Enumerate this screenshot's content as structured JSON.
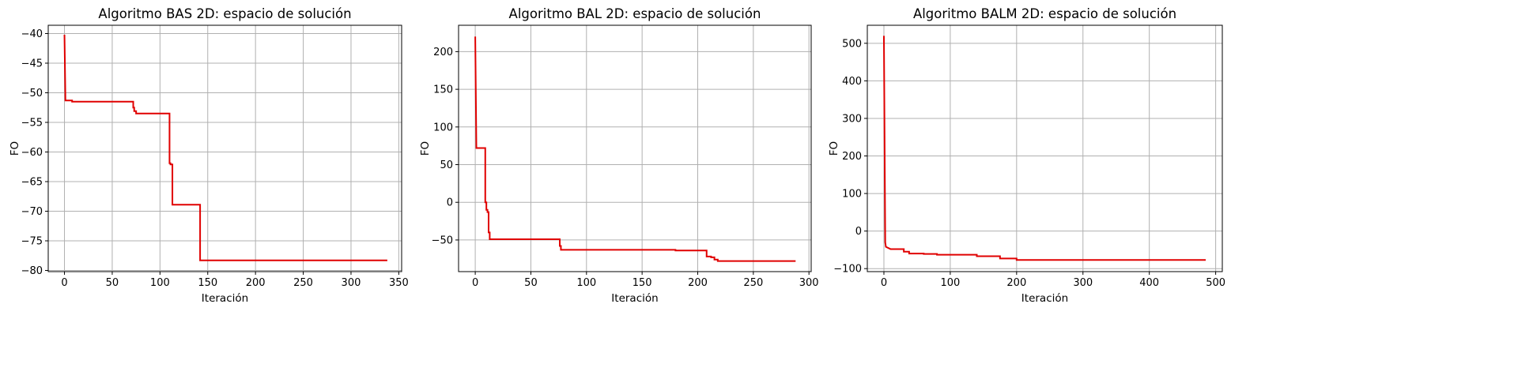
{
  "chart_data": [
    {
      "type": "line",
      "title": "Algoritmo BAS 2D: espacio de solución",
      "xlabel": "Iteración",
      "ylabel": "FO",
      "xlim": [
        -17,
        353
      ],
      "ylim": [
        -80.2,
        -38.6
      ],
      "xticks": [
        0,
        50,
        100,
        150,
        200,
        250,
        300,
        350
      ],
      "yticks": [
        -80,
        -75,
        -70,
        -65,
        -60,
        -55,
        -50,
        -45,
        -40
      ],
      "grid": true,
      "series": [
        {
          "color": "#e00000",
          "x": [
            0,
            1,
            1,
            8,
            8,
            72,
            72,
            73,
            73,
            75,
            75,
            110,
            110,
            111,
            111,
            113,
            113,
            142,
            142,
            338
          ],
          "y": [
            -40.2,
            -51.3,
            -51.3,
            -51.3,
            -51.5,
            -51.5,
            -52.5,
            -52.5,
            -53.1,
            -53.1,
            -53.5,
            -53.5,
            -61.9,
            -61.9,
            -62.1,
            -62.1,
            -68.9,
            -68.9,
            -78.3,
            -78.3
          ]
        }
      ]
    },
    {
      "type": "line",
      "title": "Algoritmo BAL 2D: espacio de solución",
      "xlabel": "Iteración",
      "ylabel": "FO",
      "xlim": [
        -15,
        302
      ],
      "ylim": [
        -92,
        235
      ],
      "xticks": [
        0,
        50,
        100,
        150,
        200,
        250,
        300
      ],
      "yticks": [
        -50,
        0,
        50,
        100,
        150,
        200
      ],
      "grid": true,
      "series": [
        {
          "color": "#e00000",
          "x": [
            0,
            1,
            1,
            9,
            9,
            10,
            10,
            11,
            11,
            12,
            12,
            13,
            13,
            76,
            76,
            77,
            77,
            180,
            180,
            208,
            208,
            212,
            212,
            215,
            215,
            218,
            218,
            288
          ],
          "y": [
            220,
            72,
            72,
            72,
            0,
            0,
            -10,
            -10,
            -13,
            -13,
            -40,
            -40,
            -49,
            -49,
            -58,
            -58,
            -63,
            -63,
            -64,
            -64,
            -72,
            -72,
            -73,
            -73,
            -76,
            -76,
            -78,
            -78
          ]
        }
      ]
    },
    {
      "type": "line",
      "title": "Algoritmo BALM 2D: espacio de solución",
      "xlabel": "Iteración",
      "ylabel": "FO",
      "xlim": [
        -25,
        510
      ],
      "ylim": [
        -108,
        548
      ],
      "xticks": [
        0,
        100,
        200,
        300,
        400,
        500
      ],
      "yticks": [
        -100,
        0,
        100,
        200,
        300,
        400,
        500
      ],
      "grid": true,
      "series": [
        {
          "color": "#e00000",
          "x": [
            0,
            2,
            2,
            3,
            3,
            10,
            10,
            30,
            30,
            38,
            38,
            60,
            60,
            80,
            80,
            140,
            140,
            175,
            175,
            200,
            200,
            485
          ],
          "y": [
            520,
            -30,
            -30,
            -42,
            -42,
            -48,
            -48,
            -48,
            -55,
            -55,
            -60,
            -60,
            -61,
            -61,
            -63,
            -63,
            -67,
            -67,
            -73,
            -73,
            -77,
            -77
          ]
        }
      ]
    }
  ]
}
